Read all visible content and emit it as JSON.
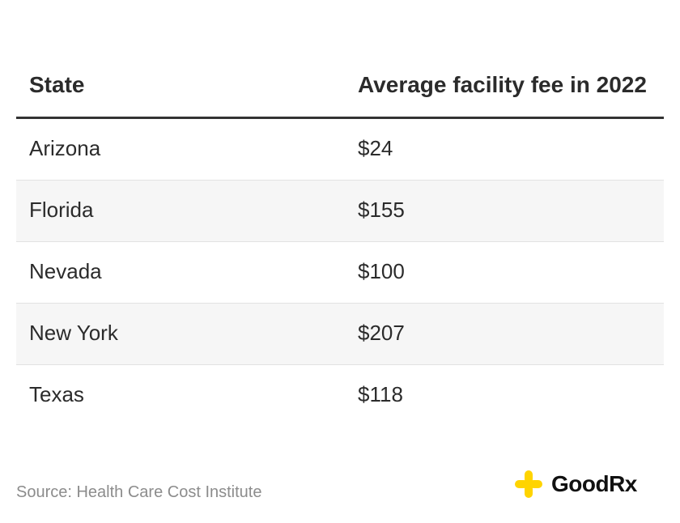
{
  "chart_data": {
    "type": "table",
    "columns": [
      "State",
      "Average facility fee in 2022"
    ],
    "rows": [
      {
        "state": "Arizona",
        "fee": "$24"
      },
      {
        "state": "Florida",
        "fee": "$155"
      },
      {
        "state": "Nevada",
        "fee": "$100"
      },
      {
        "state": "New York",
        "fee": "$207"
      },
      {
        "state": "Texas",
        "fee": "$118"
      }
    ],
    "values": [
      24,
      155,
      100,
      207,
      118
    ]
  },
  "source": "Source: Health Care Cost Institute",
  "brand": {
    "name": "GoodRx",
    "icon": "goodrx-plus-icon",
    "accent_color": "#ffd400"
  }
}
